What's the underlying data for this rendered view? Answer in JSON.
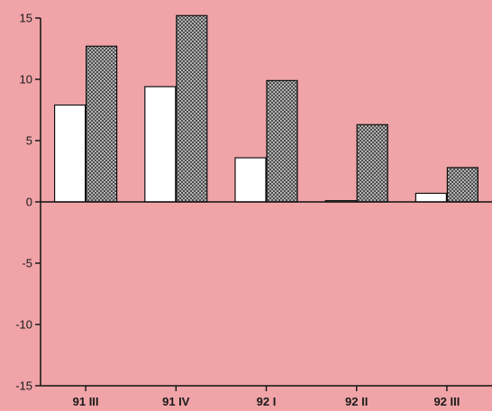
{
  "chart_data": {
    "type": "bar",
    "title": "",
    "xlabel": "",
    "ylabel": "",
    "categories": [
      "91 III",
      "91 IV",
      "92 I",
      "92 II",
      "92 III"
    ],
    "series": [
      {
        "values": [
          7.9,
          9.4,
          3.6,
          0.1,
          0.7
        ],
        "fill": "#ffffff"
      },
      {
        "values": [
          12.7,
          15.2,
          9.9,
          6.3,
          2.8
        ],
        "fill": "crosshatch"
      }
    ],
    "ylim": [
      -15,
      15
    ],
    "yticks": [
      "15",
      "10",
      "5",
      "0",
      "-5",
      "-10",
      "-15"
    ],
    "grid": false,
    "legend": "none"
  },
  "colors": {
    "background": "#f0a4a8",
    "axis": "#111111",
    "hatch": "#3a3a3a"
  }
}
